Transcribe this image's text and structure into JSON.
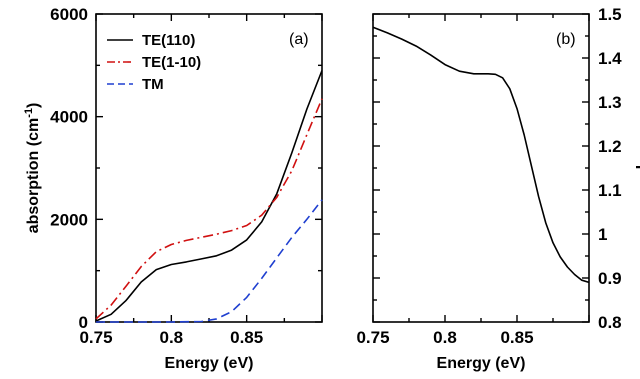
{
  "chart_data": [
    {
      "type": "line",
      "panel_label": "(a)",
      "xlabel": "Energy (eV)",
      "ylabel": "absorption (cm",
      "ylabel_sup": "-1",
      "ylabel_close": ")",
      "xlim": [
        0.75,
        0.9
      ],
      "ylim": [
        0,
        6000
      ],
      "xticks": [
        0.75,
        0.8,
        0.85
      ],
      "xtick_labels": [
        "0.75",
        "0.8",
        "0.85"
      ],
      "yticks": [
        0,
        2000,
        4000,
        6000
      ],
      "ytick_labels": [
        "0",
        "2000",
        "4000",
        "6000"
      ],
      "legend_position": "top-left",
      "series": [
        {
          "name": "TE(110)",
          "color": "#000000",
          "dash": "solid",
          "x": [
            0.75,
            0.76,
            0.77,
            0.78,
            0.79,
            0.8,
            0.81,
            0.82,
            0.83,
            0.84,
            0.85,
            0.86,
            0.87,
            0.88,
            0.89,
            0.9
          ],
          "y": [
            20,
            150,
            420,
            780,
            1020,
            1120,
            1170,
            1230,
            1290,
            1400,
            1600,
            1950,
            2500,
            3300,
            4150,
            4900
          ]
        },
        {
          "name": "TE(1-10)",
          "color": "#d01010",
          "dash": "dashdot",
          "x": [
            0.75,
            0.76,
            0.77,
            0.78,
            0.79,
            0.8,
            0.81,
            0.82,
            0.83,
            0.84,
            0.85,
            0.86,
            0.87,
            0.88,
            0.89,
            0.9
          ],
          "y": [
            60,
            330,
            700,
            1080,
            1370,
            1510,
            1590,
            1650,
            1710,
            1780,
            1880,
            2080,
            2430,
            2950,
            3650,
            4350
          ]
        },
        {
          "name": "TM",
          "color": "#1f3fd0",
          "dash": "dashed",
          "x": [
            0.75,
            0.78,
            0.8,
            0.82,
            0.83,
            0.84,
            0.85,
            0.86,
            0.87,
            0.88,
            0.89,
            0.9
          ],
          "y": [
            0,
            0,
            0,
            10,
            60,
            200,
            480,
            850,
            1250,
            1650,
            2000,
            2380
          ]
        }
      ]
    },
    {
      "type": "line",
      "panel_label": "(b)",
      "xlabel": "Energy (eV)",
      "ylabel": "r",
      "xlim": [
        0.75,
        0.9
      ],
      "ylim": [
        0.8,
        1.5
      ],
      "xticks": [
        0.75,
        0.8,
        0.85
      ],
      "xtick_labels": [
        "0.75",
        "0.8",
        "0.85"
      ],
      "yticks": [
        0.8,
        0.9,
        1.0,
        1.1,
        1.2,
        1.3,
        1.4,
        1.5
      ],
      "ytick_labels": [
        "0.8",
        "0.9",
        "1",
        "1.1",
        "1.2",
        "1.3",
        "1.4",
        "1.5"
      ],
      "series": [
        {
          "color": "#000000",
          "dash": "solid",
          "x": [
            0.75,
            0.76,
            0.77,
            0.78,
            0.79,
            0.8,
            0.81,
            0.82,
            0.83,
            0.835,
            0.84,
            0.845,
            0.85,
            0.855,
            0.86,
            0.865,
            0.87,
            0.875,
            0.88,
            0.885,
            0.89,
            0.895,
            0.9
          ],
          "y": [
            1.47,
            1.457,
            1.443,
            1.427,
            1.407,
            1.385,
            1.37,
            1.364,
            1.364,
            1.363,
            1.355,
            1.33,
            1.285,
            1.225,
            1.155,
            1.085,
            1.025,
            0.98,
            0.948,
            0.925,
            0.908,
            0.895,
            0.89
          ]
        }
      ]
    }
  ]
}
